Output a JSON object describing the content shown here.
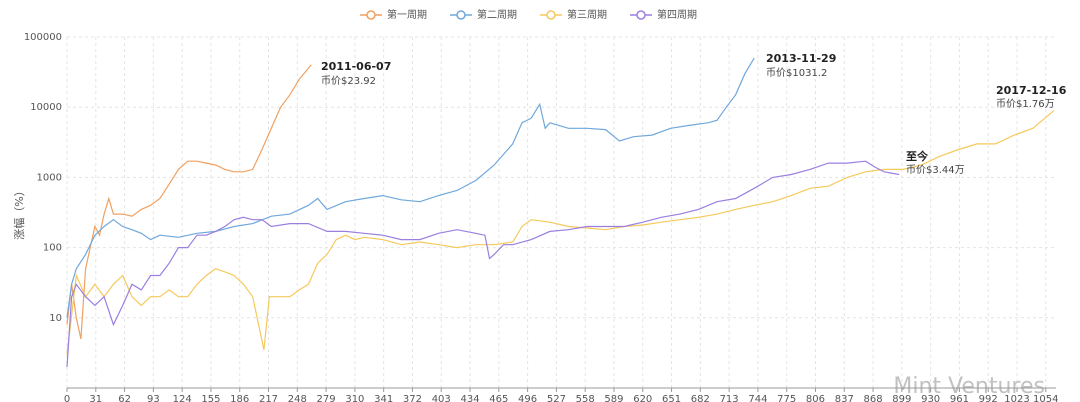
{
  "chart_data": {
    "type": "line",
    "y_label": "涨幅（%）",
    "log_y": true,
    "grid": true,
    "legend": "top",
    "xlim": [
      0,
      1065
    ],
    "ylim": [
      1,
      100000
    ],
    "xticks": [
      0,
      31,
      62,
      93,
      124,
      155,
      186,
      217,
      248,
      279,
      310,
      341,
      372,
      403,
      434,
      465,
      496,
      527,
      558,
      589,
      620,
      651,
      682,
      713,
      744,
      775,
      806,
      837,
      868,
      899,
      930,
      961,
      992,
      1023,
      1054
    ],
    "yticks": [
      10,
      100,
      1000,
      10000,
      100000
    ],
    "annotations": [
      "2011-06-07",
      "币价$23.92",
      "2013-11-29",
      "币价$1031.2",
      "2017-12-16",
      "币价$1.76万",
      "至今",
      "币价$3.44万"
    ],
    "watermark": "Mint Ventures",
    "series": [
      {
        "name": "第一周期",
        "color": "#f0a060",
        "x": [
          0,
          5,
          10,
          15,
          20,
          25,
          30,
          35,
          40,
          45,
          50,
          60,
          70,
          80,
          90,
          100,
          110,
          120,
          130,
          140,
          150,
          160,
          170,
          180,
          190,
          200,
          210,
          220,
          230,
          240,
          250,
          255,
          263
        ],
        "values": [
          8,
          30,
          10,
          5,
          50,
          100,
          200,
          150,
          300,
          500,
          300,
          300,
          280,
          350,
          400,
          500,
          800,
          1300,
          1700,
          1700,
          1600,
          1500,
          1300,
          1200,
          1200,
          1300,
          2500,
          5000,
          10000,
          15000,
          25000,
          30000,
          40000
        ]
      },
      {
        "name": "第二周期",
        "color": "#6fa8dc",
        "x": [
          0,
          5,
          10,
          20,
          30,
          40,
          50,
          60,
          70,
          80,
          90,
          100,
          120,
          140,
          160,
          180,
          200,
          220,
          240,
          260,
          270,
          280,
          300,
          320,
          340,
          360,
          380,
          400,
          420,
          440,
          460,
          480,
          490,
          500,
          509,
          515,
          520,
          540,
          560,
          580,
          595,
          610,
          630,
          650,
          670,
          690,
          700,
          710,
          720,
          730,
          740
        ],
        "values": [
          10,
          30,
          50,
          80,
          150,
          200,
          250,
          200,
          180,
          160,
          130,
          150,
          140,
          160,
          170,
          200,
          220,
          280,
          300,
          400,
          500,
          350,
          450,
          500,
          550,
          480,
          450,
          550,
          650,
          900,
          1500,
          3000,
          6000,
          7000,
          11000,
          5000,
          6000,
          5000,
          5000,
          4800,
          3300,
          3800,
          4000,
          5000,
          5500,
          6000,
          6500,
          10000,
          15000,
          30000,
          50000
        ]
      },
      {
        "name": "第三周期",
        "color": "#f5c95c",
        "x": [
          0,
          10,
          20,
          30,
          40,
          50,
          60,
          70,
          80,
          90,
          100,
          110,
          120,
          130,
          140,
          150,
          160,
          170,
          180,
          190,
          200,
          212,
          218,
          230,
          240,
          250,
          260,
          270,
          280,
          290,
          300,
          310,
          320,
          340,
          360,
          380,
          400,
          420,
          440,
          460,
          480,
          490,
          500,
          520,
          540,
          560,
          580,
          600,
          620,
          640,
          660,
          680,
          700,
          720,
          740,
          760,
          780,
          800,
          820,
          840,
          860,
          880,
          900,
          920,
          940,
          960,
          980,
          1000,
          1020,
          1040,
          1063
        ],
        "values": [
          3,
          40,
          20,
          30,
          20,
          30,
          40,
          20,
          15,
          20,
          20,
          25,
          20,
          20,
          30,
          40,
          50,
          45,
          40,
          30,
          20,
          3.5,
          20,
          20,
          20,
          25,
          30,
          60,
          80,
          130,
          150,
          130,
          140,
          130,
          110,
          120,
          110,
          100,
          110,
          110,
          120,
          200,
          250,
          230,
          200,
          190,
          180,
          200,
          210,
          230,
          250,
          270,
          300,
          350,
          400,
          450,
          550,
          700,
          750,
          1000,
          1200,
          1300,
          1300,
          1500,
          2000,
          2500,
          3000,
          3000,
          4000,
          5000,
          9000
        ]
      },
      {
        "name": "第四周期",
        "color": "#9b7fe0",
        "x": [
          0,
          5,
          10,
          20,
          30,
          40,
          50,
          60,
          70,
          80,
          90,
          100,
          110,
          120,
          130,
          140,
          150,
          160,
          170,
          180,
          190,
          200,
          210,
          220,
          240,
          260,
          280,
          300,
          320,
          340,
          360,
          380,
          400,
          420,
          440,
          450,
          455,
          460,
          470,
          480,
          500,
          520,
          540,
          560,
          580,
          600,
          620,
          640,
          660,
          680,
          700,
          720,
          740,
          760,
          780,
          800,
          820,
          840,
          860,
          870,
          880,
          896
        ],
        "values": [
          2,
          20,
          30,
          20,
          15,
          20,
          8,
          15,
          30,
          25,
          40,
          40,
          60,
          100,
          100,
          150,
          150,
          170,
          200,
          250,
          270,
          250,
          250,
          200,
          220,
          220,
          170,
          170,
          160,
          150,
          130,
          130,
          160,
          180,
          160,
          150,
          70,
          80,
          110,
          110,
          130,
          170,
          180,
          200,
          200,
          200,
          230,
          270,
          300,
          350,
          450,
          500,
          700,
          1000,
          1100,
          1300,
          1600,
          1600,
          1700,
          1400,
          1200,
          1100
        ]
      }
    ]
  }
}
